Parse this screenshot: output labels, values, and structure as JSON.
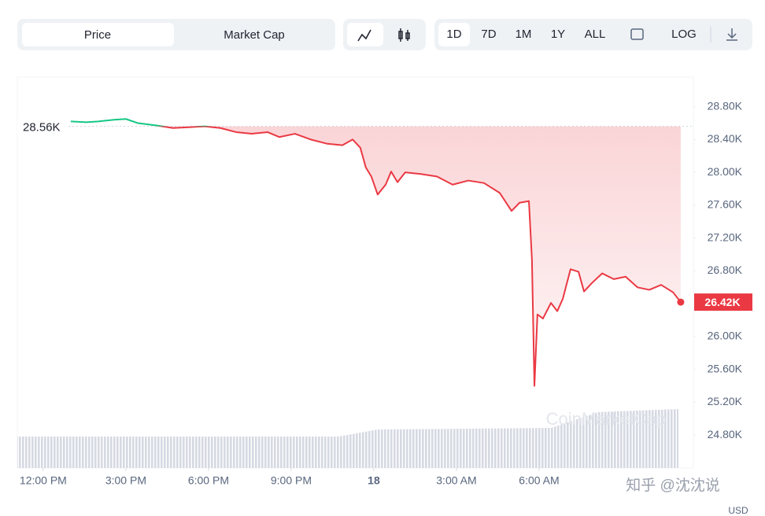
{
  "ui": {
    "tabs": [
      "Price",
      "Market Cap"
    ],
    "ranges": [
      "1D",
      "7D",
      "1M",
      "1Y",
      "ALL"
    ],
    "log": "LOG",
    "watermark": "CoinMarketCap",
    "credit": "知乎 @沈沈说",
    "currency": "USD"
  },
  "chart_data": {
    "type": "line",
    "x": [
      1.0,
      1.57,
      2.0,
      2.57,
      3.0,
      3.43,
      4.14,
      4.71,
      5.29,
      5.86,
      6.43,
      7.0,
      7.57,
      8.14,
      8.57,
      9.14,
      9.71,
      10.29,
      10.86,
      11.23,
      11.51,
      11.71,
      11.91,
      12.14,
      12.43,
      12.63,
      12.86,
      13.14,
      13.71,
      14.29,
      14.86,
      15.43,
      16.0,
      16.57,
      17.0,
      17.29,
      17.63,
      17.74,
      17.83,
      17.94,
      18.14,
      18.43,
      18.66,
      18.86,
      19.14,
      19.43,
      19.63,
      19.91,
      20.29,
      20.71,
      21.14,
      21.57,
      22.0,
      22.43,
      22.86,
      23.14
    ],
    "series": [
      {
        "name": "Price",
        "color": "#ea3943",
        "color_above": "#16c784",
        "values": [
          28.62,
          28.61,
          28.62,
          28.64,
          28.65,
          28.6,
          28.57,
          28.54,
          28.55,
          28.56,
          28.54,
          28.49,
          28.47,
          28.49,
          28.43,
          28.47,
          28.4,
          28.35,
          28.33,
          28.4,
          28.3,
          28.06,
          27.95,
          27.73,
          27.85,
          28.01,
          27.88,
          28.0,
          27.98,
          27.95,
          27.85,
          27.9,
          27.87,
          27.75,
          27.53,
          27.63,
          27.65,
          26.94,
          25.4,
          26.27,
          26.22,
          26.41,
          26.31,
          26.46,
          26.82,
          26.79,
          26.55,
          26.65,
          26.77,
          26.7,
          26.73,
          26.6,
          26.57,
          26.63,
          26.54,
          26.42
        ]
      }
    ],
    "reference": {
      "value": 28.56,
      "label": "28.56K"
    },
    "last": {
      "value": 26.42,
      "label": "26.42K"
    },
    "xlim": [
      -0.94,
      23.6
    ],
    "xticks": [
      {
        "value": 0,
        "label": "12:00 PM"
      },
      {
        "value": 3,
        "label": "3:00 PM"
      },
      {
        "value": 6,
        "label": "6:00 PM"
      },
      {
        "value": 9,
        "label": "9:00 PM"
      },
      {
        "value": 12,
        "label": "18"
      },
      {
        "value": 15,
        "label": "3:00 AM"
      },
      {
        "value": 18,
        "label": "6:00 AM"
      }
    ],
    "ylim": [
      24.4,
      29.16
    ],
    "yticks": [
      {
        "value": 28.8,
        "label": "28.80K"
      },
      {
        "value": 28.4,
        "label": "28.40K"
      },
      {
        "value": 28.0,
        "label": "28.00K"
      },
      {
        "value": 27.6,
        "label": "27.60K"
      },
      {
        "value": 27.2,
        "label": "27.20K"
      },
      {
        "value": 26.8,
        "label": "26.80K"
      },
      {
        "value": 26.0,
        "label": "26.00K"
      },
      {
        "value": 25.6,
        "label": "25.60K"
      },
      {
        "value": 25.2,
        "label": "25.20K"
      },
      {
        "value": 24.8,
        "label": "24.80K"
      }
    ]
  }
}
